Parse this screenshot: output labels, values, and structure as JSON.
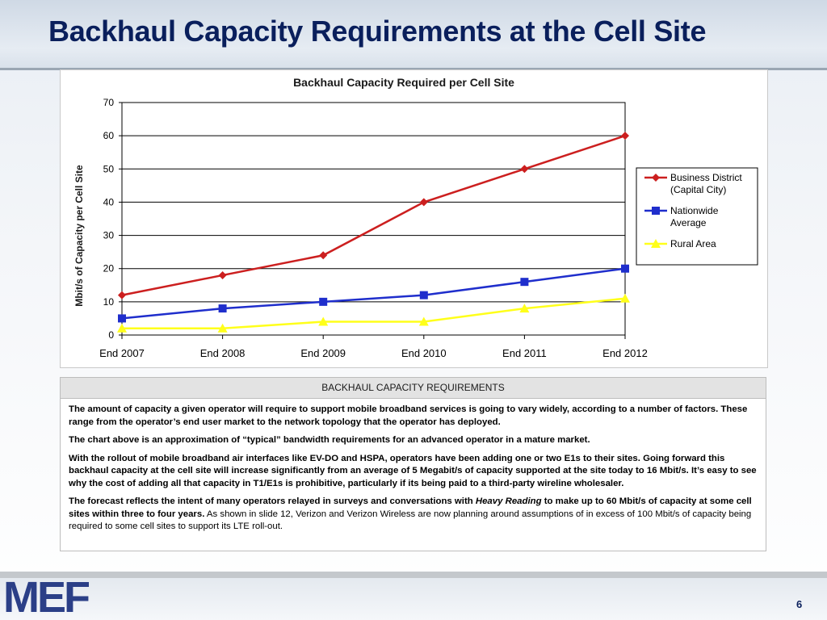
{
  "slide": {
    "title": "Backhaul Capacity Requirements at the Cell Site",
    "page_number": "6",
    "logo_text": "MEF"
  },
  "table": {
    "header": "BACKHAUL CAPACITY REQUIREMENTS",
    "p1": "The amount of capacity a given operator will require to support mobile broadband services is going to vary widely, according to a number of factors. These range from the operator’s end user market to the network topology that the operator has deployed.",
    "p2": "The chart above is an approximation of “typical” bandwidth requirements for an advanced operator in a mature market.",
    "p3": "With the rollout of mobile broadband air interfaces like EV-DO and HSPA, operators have been adding one or two E1s to their sites. Going forward this backhaul capacity at the cell site will increase significantly from an average of 5 Megabit/s of capacity supported at the site today to 16 Mbit/s. It’s easy to see why the cost of adding all that capacity in T1/E1s is prohibitive, particularly if its being paid to a third-party wireline wholesaler.",
    "p4_bold_a": "The forecast reflects the intent of many operators relayed in surveys and conversations with ",
    "p4_italic": "Heavy Reading",
    "p4_bold_b": " to make up to 60 Mbit/s of capacity at some cell sites within three to four years.",
    "p4_normal": " As shown in slide 12, Verizon and Verizon Wireless are now planning around assumptions of in excess of 100 Mbit/s of capacity being required to some cell sites to support its LTE roll-out."
  },
  "chart_data": {
    "type": "line",
    "title": "Backhaul Capacity Required per Cell Site",
    "xlabel": "",
    "ylabel": "Mbit/s of Capacity per Cell Site",
    "categories": [
      "End 2007",
      "End 2008",
      "End 2009",
      "End 2010",
      "End 2011",
      "End 2012"
    ],
    "ylim": [
      0,
      70
    ],
    "yticks": [
      0,
      10,
      20,
      30,
      40,
      50,
      60,
      70
    ],
    "grid": true,
    "legend_position": "right",
    "series": [
      {
        "name": "Business District (Capital City)",
        "name_lines": [
          "Business District",
          "(Capital City)"
        ],
        "values": [
          12,
          18,
          24,
          40,
          50,
          60
        ],
        "color": "#cc1f1f",
        "marker": "diamond"
      },
      {
        "name": "Nationwide Average",
        "name_lines": [
          "Nationwide",
          "Average"
        ],
        "values": [
          5,
          8,
          10,
          12,
          16,
          20
        ],
        "color": "#1f2ecc",
        "marker": "square"
      },
      {
        "name": "Rural Area",
        "name_lines": [
          "Rural Area"
        ],
        "values": [
          2,
          2,
          4,
          4,
          8,
          11
        ],
        "color": "#ffff1a",
        "marker": "triangle"
      }
    ]
  }
}
